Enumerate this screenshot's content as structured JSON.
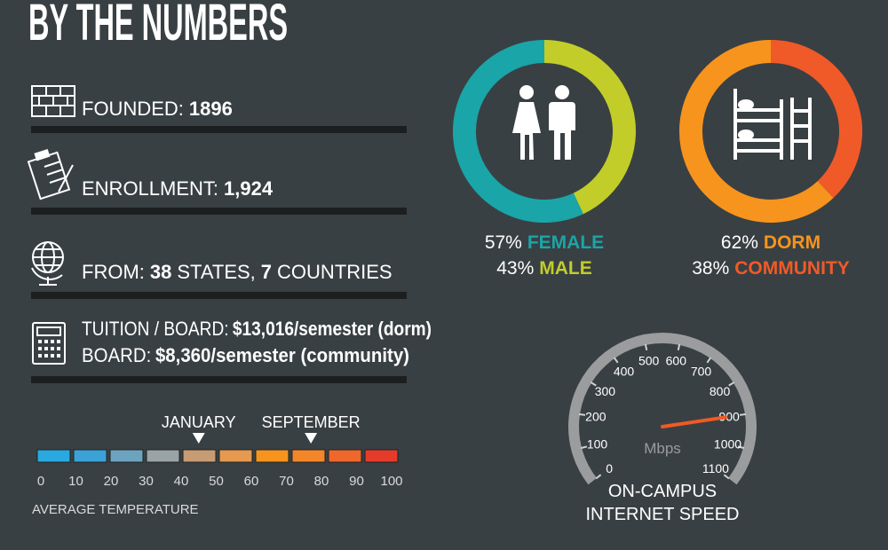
{
  "header": {
    "title": "BY THE NUMBERS"
  },
  "facts": {
    "founded": {
      "label": "FOUNDED:",
      "value": "1896"
    },
    "enrollment": {
      "label": "ENROLLMENT:",
      "value": "1,924"
    },
    "origin": {
      "label": "FROM:",
      "states": "38",
      "states_label": "STATES,",
      "countries": "7",
      "countries_label": "COUNTRIES"
    },
    "cost": {
      "tuition_label": "TUITION / BOARD:",
      "tuition": "$13,016/semester (dorm)",
      "board_label": "BOARD:",
      "board": "$8,360/semester (community)"
    }
  },
  "gender": {
    "values": [
      57,
      43
    ],
    "value_labels": [
      "57%",
      "43%"
    ],
    "names": [
      "FEMALE",
      "MALE"
    ],
    "colors": [
      "#1aa5a8",
      "#c2cd2a"
    ]
  },
  "housing": {
    "values": [
      62,
      38
    ],
    "value_labels": [
      "62%",
      "38%"
    ],
    "names": [
      "DORM",
      "COMMUNITY"
    ],
    "colors": [
      "#f7941d",
      "#f05a28"
    ]
  },
  "temperature": {
    "title": "AVERAGE TEMPERATURE",
    "xlim": [
      0,
      100
    ],
    "xticks": [
      0,
      10,
      20,
      30,
      40,
      50,
      60,
      70,
      80,
      90,
      100
    ],
    "colors": [
      "#29a9e0",
      "#3ba2d8",
      "#6ca4c0",
      "#9aa3a6",
      "#c79b74",
      "#e59a4f",
      "#f7941d",
      "#f4862a",
      "#f0672c",
      "#e63b2a"
    ],
    "markers": [
      {
        "label": "JANUARY",
        "value": 45
      },
      {
        "label": "SEPTEMBER",
        "value": 77
      }
    ]
  },
  "speed": {
    "title_lines": [
      "ON-CAMPUS",
      "INTERNET SPEED"
    ],
    "unit": "Mbps",
    "lim": [
      0,
      1100
    ],
    "ticks": [
      0,
      100,
      200,
      300,
      400,
      500,
      600,
      700,
      800,
      900,
      1000,
      1100
    ],
    "value": 900
  }
}
